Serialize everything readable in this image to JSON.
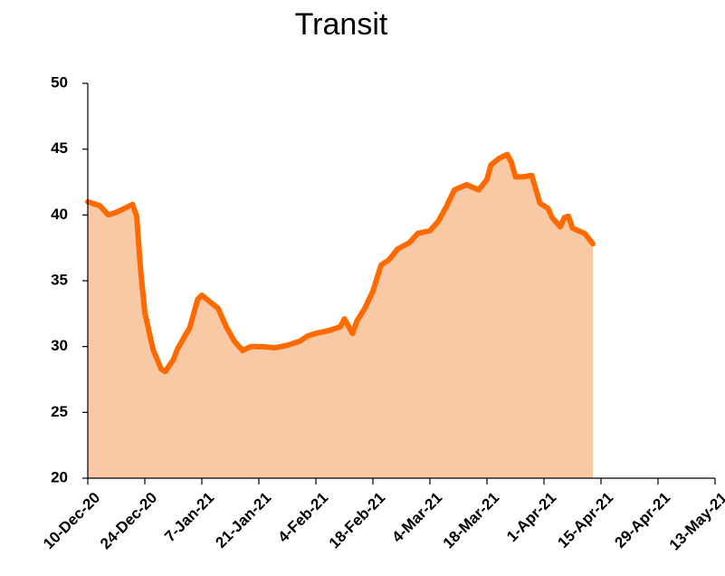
{
  "chart_data": {
    "type": "area",
    "title": "Transit",
    "x": [
      "2020-12-10",
      "2020-12-13",
      "2020-12-15",
      "2020-12-17",
      "2020-12-19",
      "2020-12-21",
      "2020-12-22",
      "2020-12-23",
      "2020-12-24",
      "2020-12-26",
      "2020-12-28",
      "2020-12-29",
      "2020-12-31",
      "2021-01-01",
      "2021-01-03",
      "2021-01-04",
      "2021-01-06",
      "2021-01-07",
      "2021-01-09",
      "2021-01-11",
      "2021-01-13",
      "2021-01-15",
      "2021-01-17",
      "2021-01-19",
      "2021-01-22",
      "2021-01-25",
      "2021-01-28",
      "2021-01-31",
      "2021-02-02",
      "2021-02-04",
      "2021-02-07",
      "2021-02-10",
      "2021-02-11",
      "2021-02-13",
      "2021-02-14",
      "2021-02-16",
      "2021-02-18",
      "2021-02-20",
      "2021-02-22",
      "2021-02-24",
      "2021-02-27",
      "2021-03-01",
      "2021-03-04",
      "2021-03-06",
      "2021-03-08",
      "2021-03-10",
      "2021-03-13",
      "2021-03-16",
      "2021-03-18",
      "2021-03-19",
      "2021-03-21",
      "2021-03-23",
      "2021-03-24",
      "2021-03-25",
      "2021-03-27",
      "2021-03-29",
      "2021-03-31",
      "2021-04-02",
      "2021-04-03",
      "2021-04-05",
      "2021-04-06",
      "2021-04-07",
      "2021-04-08",
      "2021-04-11",
      "2021-04-13"
    ],
    "values": [
      41.0,
      40.7,
      40.0,
      40.2,
      40.5,
      40.8,
      39.9,
      35.7,
      32.6,
      29.8,
      28.3,
      28.1,
      29.0,
      29.8,
      30.9,
      31.4,
      33.6,
      33.9,
      33.4,
      32.9,
      31.5,
      30.4,
      29.7,
      30.0,
      30.0,
      29.9,
      30.1,
      30.4,
      30.8,
      31.0,
      31.2,
      31.5,
      32.1,
      31.0,
      31.9,
      32.9,
      34.2,
      36.2,
      36.6,
      37.4,
      37.9,
      38.6,
      38.8,
      39.5,
      40.6,
      41.9,
      42.3,
      41.9,
      42.7,
      43.8,
      44.3,
      44.6,
      44.0,
      42.9,
      42.9,
      43.0,
      40.9,
      40.5,
      39.8,
      39.1,
      39.8,
      39.9,
      39.0,
      38.6,
      37.8
    ],
    "color": "#ff6a00",
    "fill_color": "#f9c9a5",
    "xlim": [
      "2020-12-10",
      "2021-05-13"
    ],
    "xticks": [
      {
        "value": "2020-12-10",
        "label": "10-Dec-20"
      },
      {
        "value": "2020-12-24",
        "label": "24-Dec-20"
      },
      {
        "value": "2021-01-07",
        "label": "7-Jan-21"
      },
      {
        "value": "2021-01-21",
        "label": "21-Jan-21"
      },
      {
        "value": "2021-02-04",
        "label": "4-Feb-21"
      },
      {
        "value": "2021-02-18",
        "label": "18-Feb-21"
      },
      {
        "value": "2021-03-04",
        "label": "4-Mar-21"
      },
      {
        "value": "2021-03-18",
        "label": "18-Mar-21"
      },
      {
        "value": "2021-04-01",
        "label": "1-Apr-21"
      },
      {
        "value": "2021-04-15",
        "label": "15-Apr-21"
      },
      {
        "value": "2021-04-29",
        "label": "29-Apr-21"
      },
      {
        "value": "2021-05-13",
        "label": "13-May-21"
      }
    ],
    "ylim": [
      20,
      50
    ],
    "yticks": [
      20,
      25,
      30,
      35,
      40,
      45,
      50
    ],
    "grid": false
  }
}
